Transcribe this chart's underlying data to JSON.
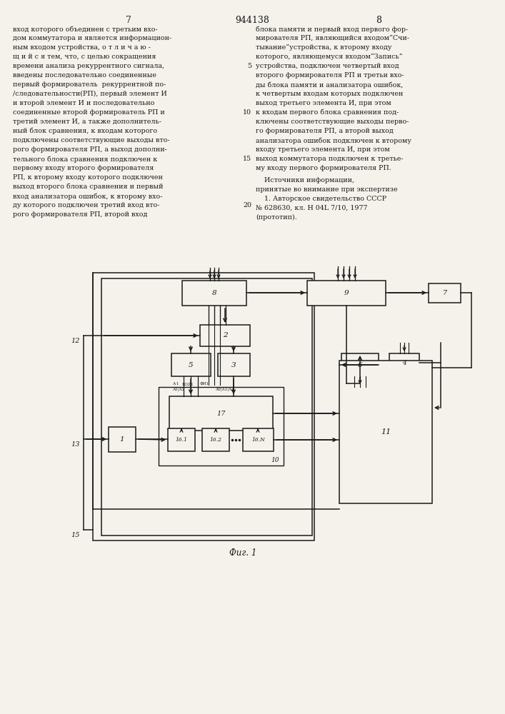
{
  "title_center": "944138",
  "page_left": "7",
  "page_right": "8",
  "fig_caption": "Фиг. 1",
  "bg_color": "#f5f2ec",
  "text_color": "#1a1a1a",
  "left_text_lines": [
    "вход которого объединен с третьим вхо-",
    "дом коммутатора и является информацион-",
    "ным входом устройства, о т л и ч а ю -",
    "щ и й с я тем, что, с целью сокращения",
    "времени анализа рекуррентного сигнала,",
    "введены последовательно соединенные",
    "первый формирователь  рекуррентной по-",
    "/следовательности(РП), первый элемент И",
    "и второй элемент И и последовательно",
    "соединенные второй формирователь РП и",
    "третий элемент И, а также дополнитель-",
    "ный блок сравнения, к входам которого",
    "подключены соответствующие выходы вто-",
    "рого формирователя РП, а выход дополни-",
    "тельного блока сравнения подключен к",
    "первому входу второго формирователя",
    "РП, к второму входу которого подключен",
    "выход второго блока сравнения и первый",
    "вход анализатора ошибок, к второму вхо-",
    "ду которого подключен третий вход вто-",
    "рого формирователя РП, второй вход"
  ],
  "right_text_lines": [
    "блока памяти и первый вход первого фор-",
    "мирователя РП, являющийся входом“Счи-",
    "тывание”устройства, к второму входу",
    "которого, являющемуся входом“Запись”",
    "устройства, подключен четвертый вход",
    "второго формирователя РП и третьи вхо-",
    "ды блока памяти и анализатора ошибок,",
    "к четвертым входам которых подключен",
    "выход третьего элемента И, при этом",
    "к входам первого блока сравнения под-",
    "ключены соответствующие выходы перво-",
    "го формирователя РП, а второй выход",
    "анализатора ошибок подключен к второму",
    "входу третьего элемента И, при этом",
    "выход коммутатора подключен к третье-",
    "му входу первого формирователя РП."
  ],
  "right_text2_lines": [
    "    Источники информации,",
    "принятые во внимание при экспертизе",
    "    1. Авторское свидетельство СССР",
    "№ 628630, кл. H 04L 7/10, 1977",
    "(прототип)."
  ],
  "line_numbers": [
    "5",
    "10",
    "15",
    "20"
  ],
  "lw_numbers": [
    4,
    9,
    14,
    19
  ]
}
